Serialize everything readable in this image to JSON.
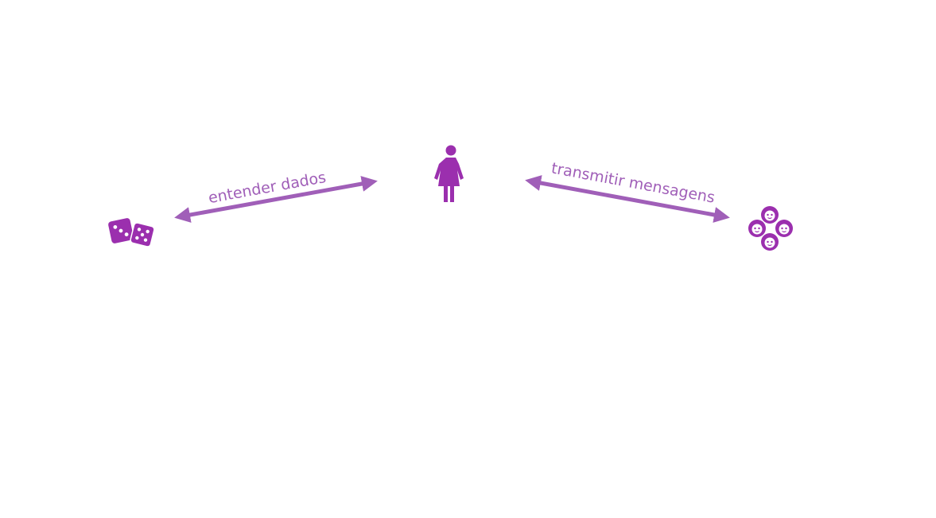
{
  "diagram": {
    "accent_color": "#a05fb8",
    "icon_color": "#9b2fae",
    "nodes": {
      "data": {
        "icon": "dice-icon"
      },
      "person": {
        "icon": "woman-icon"
      },
      "audience": {
        "icon": "group-faces-icon"
      }
    },
    "edges": {
      "left": {
        "label": "entender dados",
        "direction": "bidirectional"
      },
      "right": {
        "label": "transmitir mensagens",
        "direction": "bidirectional"
      }
    }
  }
}
